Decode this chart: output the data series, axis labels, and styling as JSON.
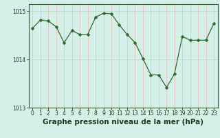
{
  "x": [
    0,
    1,
    2,
    3,
    4,
    5,
    6,
    7,
    8,
    9,
    10,
    11,
    12,
    13,
    14,
    15,
    16,
    17,
    18,
    19,
    20,
    21,
    22,
    23
  ],
  "y": [
    1014.65,
    1014.82,
    1014.8,
    1014.68,
    1014.35,
    1014.6,
    1014.52,
    1014.52,
    1014.88,
    1014.96,
    1014.95,
    1014.72,
    1014.52,
    1014.35,
    1014.02,
    1013.68,
    1013.68,
    1013.42,
    1013.7,
    1014.48,
    1014.4,
    1014.4,
    1014.4,
    1014.75
  ],
  "line_color": "#2d6a2d",
  "marker": "D",
  "marker_size": 2.5,
  "bg_color": "#d5f0e8",
  "grid_color_v": "#e8b8b8",
  "grid_color_h": "#b8d8c8",
  "xlabel": "Graphe pression niveau de la mer (hPa)",
  "ylim": [
    1013.0,
    1015.15
  ],
  "yticks": [
    1013,
    1014,
    1015
  ],
  "xticks": [
    0,
    1,
    2,
    3,
    4,
    5,
    6,
    7,
    8,
    9,
    10,
    11,
    12,
    13,
    14,
    15,
    16,
    17,
    18,
    19,
    20,
    21,
    22,
    23
  ],
  "tick_fontsize": 5.5,
  "xlabel_fontsize": 7.5
}
